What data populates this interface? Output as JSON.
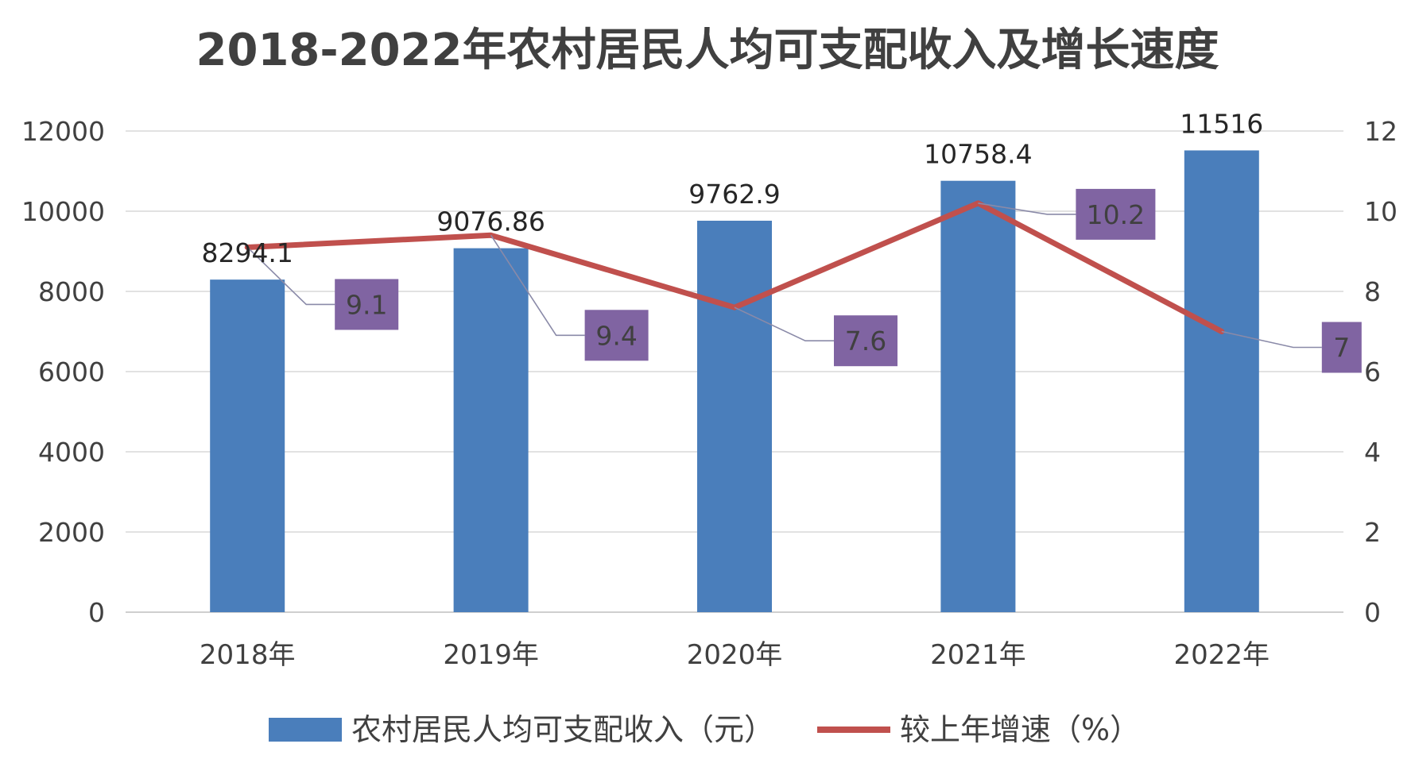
{
  "chart_data": {
    "type": "bar",
    "title": "2018-2022年农村居民人均可支配收入及增长速度",
    "categories": [
      "2018年",
      "2019年",
      "2020年",
      "2021年",
      "2022年"
    ],
    "series": [
      {
        "name": "农村居民人均可支配收入（元）",
        "chart_type": "bar",
        "axis": "left",
        "color": "#4a7ebb",
        "values": [
          8294.1,
          9076.86,
          9762.9,
          10758.4,
          11516
        ],
        "labels": [
          "8294.1",
          "9076.86",
          "9762.9",
          "10758.4",
          "11516"
        ]
      },
      {
        "name": "较上年增速（%）",
        "chart_type": "line",
        "axis": "right",
        "color": "#c0504d",
        "label_box_color": "#8064a2",
        "values": [
          9.1,
          9.4,
          7.6,
          10.2,
          7
        ],
        "labels": [
          "9.1",
          "9.4",
          "7.6",
          "10.2",
          "7"
        ]
      }
    ],
    "y_left": {
      "min": 0,
      "max": 12000,
      "ticks": [
        "0",
        "2000",
        "4000",
        "6000",
        "8000",
        "10000",
        "12000"
      ]
    },
    "y_right": {
      "min": 0,
      "max": 12,
      "ticks": [
        "0",
        "2",
        "4",
        "6",
        "8",
        "10",
        "12"
      ]
    },
    "grid": true,
    "legend_position": "bottom"
  }
}
